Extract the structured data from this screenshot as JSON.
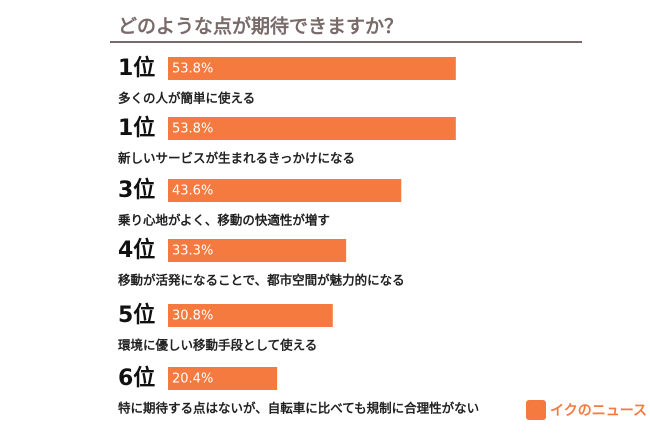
{
  "chart_data": {
    "type": "bar",
    "title": "どのような点が期待できますか？",
    "ranks": [
      "1位",
      "1位",
      "3位",
      "4位",
      "5位",
      "6位"
    ],
    "categories": [
      "多くの人が簡単に使える",
      "新しいサービスが生まれるきっかけになる",
      "乗り心地がよく、移動の快適性が増す",
      "移動が活発になることで、都市空間が魅力的になる",
      "環境に優しい移動手段として使える",
      "特に期待する点はないが、自転車に比べても規制に合理性がない"
    ],
    "values": [
      53.8,
      53.8,
      43.6,
      33.3,
      30.8,
      20.4
    ],
    "value_labels": [
      "53.8%",
      "53.8%",
      "43.6%",
      "33.3%",
      "30.8%",
      "20.4%"
    ],
    "color": "#f47a3f",
    "watermark": "イクのニュース"
  }
}
